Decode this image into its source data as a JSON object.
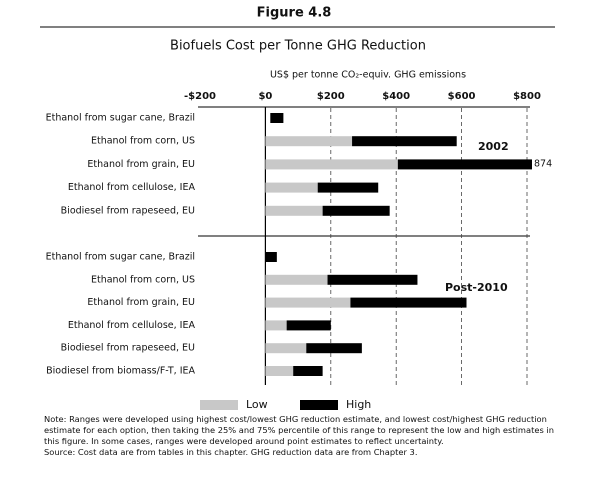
{
  "header": {
    "figure": "Figure 4.8",
    "title": "Biofuels Cost per Tonne GHG Reduction"
  },
  "note": [
    "Note: Ranges were developed using highest cost/lowest GHG reduction estimate, and lowest cost/highest GHG reduction estimate for each option, then taking the 25% and 75% percentile of this range to represent the low and high estimates in this figure. In some cases, ranges were developed around point estimates to reflect uncertainty.",
    "Source: Cost data are from tables in this chapter. GHG reduction data are from Chapter 3."
  ],
  "chart_data": [
    {
      "type": "floating-bar",
      "label": "2002",
      "xlabel": "US$ per tonne CO₂-equiv. GHG emissions",
      "xlim": [
        -200,
        800
      ],
      "xticks": [
        {
          "value": -200,
          "label": "-$200"
        },
        {
          "value": 0,
          "label": "$0"
        },
        {
          "value": 200,
          "label": "$200"
        },
        {
          "value": 400,
          "label": "$400"
        },
        {
          "value": 600,
          "label": "$600"
        },
        {
          "value": 800,
          "label": "$800"
        }
      ],
      "grid": true,
      "categories": [
        "Ethanol from sugar cane, Brazil",
        "Ethanol from corn, US",
        "Ethanol from grain, EU",
        "Ethanol from cellulose, IEA",
        "Biodiesel from rapeseed, EU"
      ],
      "series": [
        {
          "name": "Low",
          "color": "#c8c8c8",
          "values": [
            null,
            [
              0,
              265
            ],
            [
              0,
              405
            ],
            [
              0,
              160
            ],
            [
              0,
              175
            ]
          ]
        },
        {
          "name": "High",
          "color": "#000000",
          "values": [
            [
              15,
              55
            ],
            [
              265,
              585
            ],
            [
              405,
              874
            ],
            [
              160,
              345
            ],
            [
              175,
              380
            ]
          ]
        }
      ]
    },
    {
      "type": "floating-bar",
      "label": "Post-2010",
      "xlim": [
        -200,
        800
      ],
      "categories": [
        "Ethanol from sugar cane, Brazil",
        "Ethanol from corn, US",
        "Ethanol from grain, EU",
        "Ethanol from cellulose, IEA",
        "Biodiesel from rapeseed, EU",
        "Biodiesel from biomass/F-T, IEA"
      ],
      "series": [
        {
          "color": "#c8c8c8",
          "values": [
            null,
            [
              0,
              190
            ],
            [
              0,
              260
            ],
            [
              0,
              65
            ],
            [
              0,
              125
            ],
            [
              0,
              85
            ]
          ]
        },
        {
          "color": "#000000",
          "values": [
            [
              0,
              35
            ],
            [
              190,
              465
            ],
            [
              260,
              615
            ],
            [
              65,
              200
            ],
            [
              125,
              295
            ],
            [
              85,
              175
            ]
          ]
        }
      ]
    }
  ]
}
